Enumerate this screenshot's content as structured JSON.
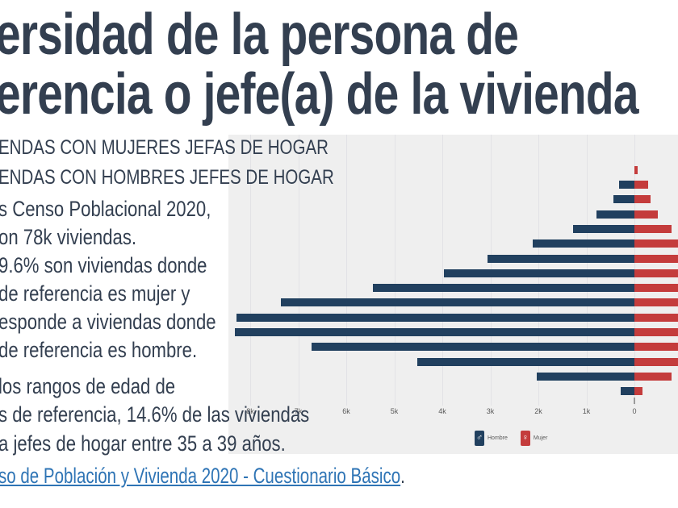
{
  "title": {
    "line1": "ersidad de la persona de",
    "line2": "erencia o jefe(a) de la vivienda"
  },
  "body": {
    "lines": [
      "ENDAS CON MUJERES JEFAS DE HOGAR",
      "ENDAS CON HOMBRES JEFES DE HOGAR",
      "s Censo Poblacional 2020,",
      "on 78k viviendas.",
      "9.6% son viviendas donde",
      "de referencia es mujer y",
      "esponde a viviendas donde",
      "de referencia es hombre.",
      "los rangos de edad de",
      "s de referencia, 14.6% de las viviendas",
      "a jefes de hogar entre 35 a 39 años."
    ]
  },
  "source": {
    "link_text": "so de Población y Vivienda 2020 - Cuestionario Básico",
    "suffix": "."
  },
  "colors": {
    "title_text": "#333F50",
    "body_text": "#333F50",
    "link": "#2E74B5",
    "bar_male": "#21405F",
    "bar_female": "#C43C3C",
    "chart_bg": "#EFEFEF",
    "gridline": "#E2E2E6",
    "axis_label": "#595959"
  },
  "chart_data": {
    "type": "bar",
    "subtype": "population-pyramid",
    "orientation": "horizontal",
    "unit": "viviendas (thousands)",
    "note": "Male (Hombre) bars extend left from 0; female (Mujer) bars extend right and most are clipped by the right crop edge. Age-group labels are outside the visible crop.",
    "x_axis": {
      "tick_labels": [
        "8k",
        "7k",
        "6k",
        "5k",
        "4k",
        "3k",
        "2k",
        "1k",
        "0"
      ],
      "tick_values_k": [
        8,
        7,
        6,
        5,
        4,
        3,
        2,
        1,
        0
      ],
      "grid": true
    },
    "rows_top_to_bottom": 16,
    "series": [
      {
        "name": "Hombre",
        "color": "#21405F",
        "values_k": [
          0,
          0.32,
          0.44,
          0.79,
          1.28,
          2.12,
          3.06,
          3.97,
          5.45,
          7.36,
          8.29,
          8.32,
          6.72,
          4.52,
          2.03,
          0.29
        ]
      },
      {
        "name": "Mujer",
        "color": "#C43C3C",
        "values_k": [
          0.07,
          0.28,
          0.34,
          0.49,
          0.78,
          0.91,
          0.91,
          0.91,
          0.91,
          0.91,
          0.91,
          0.91,
          0.91,
          0.91,
          0.77,
          0.17
        ],
        "clipped_at_crop": [
          false,
          false,
          false,
          false,
          false,
          true,
          true,
          true,
          true,
          true,
          true,
          true,
          true,
          true,
          false,
          false
        ]
      }
    ],
    "legend": {
      "position": "bottom",
      "items": [
        {
          "label": "Hombre",
          "symbol": "♂"
        },
        {
          "label": "Mujer",
          "symbol": "♀"
        }
      ]
    }
  }
}
